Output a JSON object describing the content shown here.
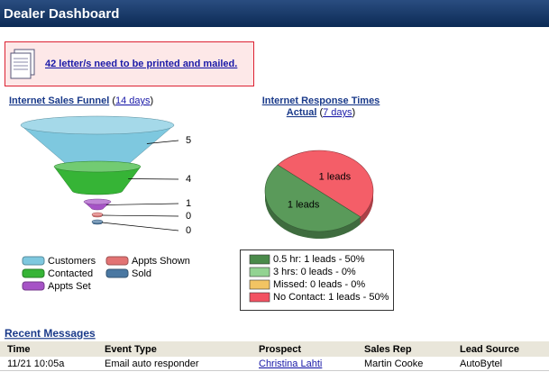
{
  "header": {
    "title": "Dealer Dashboard"
  },
  "alert": {
    "text": "42 letter/s need to be printed and mailed."
  },
  "funnel": {
    "title": "Internet Sales Funnel",
    "period_open": "(",
    "period": "14 days",
    "period_close": ")",
    "stages": [
      {
        "name": "Customers",
        "value": 5,
        "color": "#7ec8df"
      },
      {
        "name": "Contacted",
        "value": 4,
        "color": "#36b436"
      },
      {
        "name": "Appts Set",
        "value": 1,
        "color": "#a653c6"
      },
      {
        "name": "Appts Shown",
        "value": 0,
        "color": "#e27373"
      },
      {
        "name": "Sold",
        "value": 0,
        "color": "#4a78a2"
      }
    ]
  },
  "response": {
    "title": "Internet Response Times",
    "subtitle": "Actual",
    "period_open": "(",
    "period": "7 days",
    "period_close": ")",
    "slices": [
      {
        "name": "No Contact",
        "value": 1,
        "label": "1 leads",
        "color": "#f45e68"
      },
      {
        "name": "0.5 hr",
        "value": 1,
        "label": "1 leads",
        "color": "#5a9a5a"
      }
    ],
    "legend": [
      {
        "label": "0.5 hr: 1 leads - 50%",
        "color": "#4a8a4a"
      },
      {
        "label": "3 hrs: 0 leads - 0%",
        "color": "#92d392"
      },
      {
        "label": "Missed: 0 leads - 0%",
        "color": "#f2c463"
      },
      {
        "label": "No Contact: 1 leads - 50%",
        "color": "#f25262"
      }
    ]
  },
  "messages": {
    "title": "Recent Messages",
    "columns": [
      "Time",
      "Event Type",
      "Prospect",
      "Sales Rep",
      "Lead Source"
    ],
    "rows": [
      [
        "11/21 10:05a",
        "Email auto responder",
        "Christina Lahti",
        "Martin Cooke",
        "AutoBytel"
      ]
    ]
  }
}
